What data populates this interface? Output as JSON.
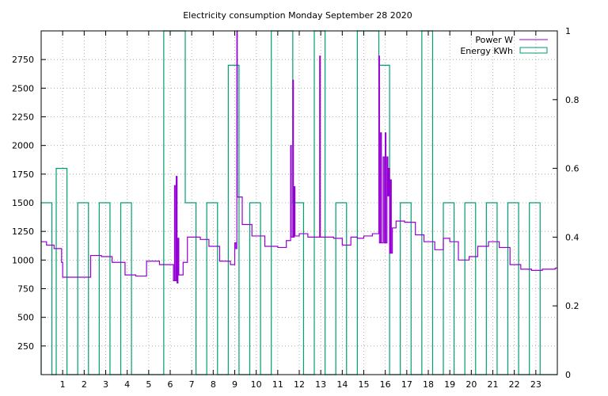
{
  "chart_data": {
    "type": "line",
    "title": "Electricity consumption Monday September 28 2020",
    "x_ticks": [
      "1",
      "2",
      "3",
      "4",
      "5",
      "6",
      "7",
      "8",
      "9",
      "10",
      "11",
      "12",
      "13",
      "14",
      "15",
      "16",
      "17",
      "18",
      "19",
      "20",
      "21",
      "22",
      "23"
    ],
    "xlim": [
      0,
      24
    ],
    "y_ticks": [
      "250",
      "500",
      "750",
      "1000",
      "1250",
      "1500",
      "1750",
      "2000",
      "2250",
      "2500",
      "2750"
    ],
    "ylim": [
      0,
      3000
    ],
    "y2_ticks": [
      "0",
      "0.2",
      "0.4",
      "0.6",
      "0.8",
      "1"
    ],
    "y2lim": [
      0,
      1
    ],
    "grid": true,
    "legend_position": "top-right",
    "colors": {
      "power": "#9400d3",
      "energy": "#009e73"
    },
    "series": [
      {
        "name": "Power W",
        "style": "step",
        "points": [
          [
            0,
            1160
          ],
          [
            0.25,
            1130
          ],
          [
            0.6,
            1100
          ],
          [
            0.95,
            980
          ],
          [
            1.0,
            850
          ],
          [
            2.3,
            1040
          ],
          [
            2.8,
            1030
          ],
          [
            3.3,
            980
          ],
          [
            3.9,
            870
          ],
          [
            4.4,
            860
          ],
          [
            4.9,
            990
          ],
          [
            5.5,
            960
          ],
          [
            6.15,
            820
          ],
          [
            6.2,
            1650
          ],
          [
            6.23,
            820
          ],
          [
            6.28,
            1730
          ],
          [
            6.32,
            800
          ],
          [
            6.36,
            1190
          ],
          [
            6.4,
            870
          ],
          [
            6.6,
            980
          ],
          [
            6.8,
            1200
          ],
          [
            7.4,
            1180
          ],
          [
            7.8,
            1120
          ],
          [
            8.3,
            990
          ],
          [
            8.8,
            960
          ],
          [
            9.0,
            1150
          ],
          [
            9.05,
            1100
          ],
          [
            9.1,
            3000
          ],
          [
            9.12,
            1550
          ],
          [
            9.35,
            1310
          ],
          [
            9.8,
            1210
          ],
          [
            10.4,
            1120
          ],
          [
            11.0,
            1110
          ],
          [
            11.4,
            1170
          ],
          [
            11.6,
            2000
          ],
          [
            11.63,
            1200
          ],
          [
            11.7,
            2570
          ],
          [
            11.73,
            1200
          ],
          [
            11.77,
            1640
          ],
          [
            11.8,
            1210
          ],
          [
            12.0,
            1230
          ],
          [
            12.4,
            1200
          ],
          [
            12.95,
            2780
          ],
          [
            12.98,
            1200
          ],
          [
            13.6,
            1190
          ],
          [
            14.0,
            1130
          ],
          [
            14.4,
            1200
          ],
          [
            14.7,
            1190
          ],
          [
            15.0,
            1210
          ],
          [
            15.4,
            1230
          ],
          [
            15.7,
            2780
          ],
          [
            15.73,
            1150
          ],
          [
            15.78,
            2110
          ],
          [
            15.82,
            1150
          ],
          [
            15.9,
            1900
          ],
          [
            15.95,
            1150
          ],
          [
            16.0,
            2110
          ],
          [
            16.03,
            1150
          ],
          [
            16.08,
            1900
          ],
          [
            16.12,
            1560
          ],
          [
            16.16,
            1800
          ],
          [
            16.2,
            1060
          ],
          [
            16.24,
            1700
          ],
          [
            16.28,
            1060
          ],
          [
            16.33,
            1280
          ],
          [
            16.5,
            1340
          ],
          [
            16.9,
            1330
          ],
          [
            17.4,
            1220
          ],
          [
            17.8,
            1160
          ],
          [
            18.3,
            1090
          ],
          [
            18.7,
            1190
          ],
          [
            19.0,
            1160
          ],
          [
            19.4,
            1000
          ],
          [
            19.9,
            1030
          ],
          [
            20.3,
            1120
          ],
          [
            20.8,
            1160
          ],
          [
            21.3,
            1110
          ],
          [
            21.8,
            960
          ],
          [
            22.3,
            920
          ],
          [
            22.8,
            910
          ],
          [
            23.3,
            920
          ],
          [
            23.9,
            930
          ]
        ]
      },
      {
        "name": "Energy KWh",
        "style": "histeps",
        "bars": [
          [
            0,
            0.5
          ],
          [
            0.5,
            0
          ],
          [
            0.7,
            0.6
          ],
          [
            1.2,
            0
          ],
          [
            1.7,
            0.5
          ],
          [
            2.2,
            0
          ],
          [
            2.7,
            0.5
          ],
          [
            3.2,
            0
          ],
          [
            3.7,
            0.5
          ],
          [
            4.2,
            0
          ],
          [
            5.7,
            1
          ],
          [
            6.2,
            1
          ],
          [
            6.7,
            0.5
          ],
          [
            7.2,
            0
          ],
          [
            7.7,
            0.5
          ],
          [
            8.2,
            0
          ],
          [
            8.7,
            0.9
          ],
          [
            9.2,
            0
          ],
          [
            9.7,
            0.5
          ],
          [
            10.2,
            0
          ],
          [
            10.7,
            1
          ],
          [
            11.2,
            1
          ],
          [
            11.7,
            0.5
          ],
          [
            12.2,
            0
          ],
          [
            12.7,
            1
          ],
          [
            13.2,
            0
          ],
          [
            13.7,
            0.5
          ],
          [
            14.2,
            0
          ],
          [
            14.7,
            1
          ],
          [
            15.2,
            1
          ],
          [
            15.7,
            0.9
          ],
          [
            16.2,
            0
          ],
          [
            16.7,
            0.5
          ],
          [
            17.2,
            0
          ],
          [
            17.7,
            1
          ],
          [
            18.2,
            0
          ],
          [
            18.7,
            0.5
          ],
          [
            19.2,
            0
          ],
          [
            19.7,
            0.5
          ],
          [
            20.2,
            0
          ],
          [
            20.7,
            0.5
          ],
          [
            21.2,
            0
          ],
          [
            21.7,
            0.5
          ],
          [
            22.2,
            0
          ],
          [
            22.7,
            0.5
          ],
          [
            23.2,
            0
          ]
        ]
      }
    ]
  }
}
